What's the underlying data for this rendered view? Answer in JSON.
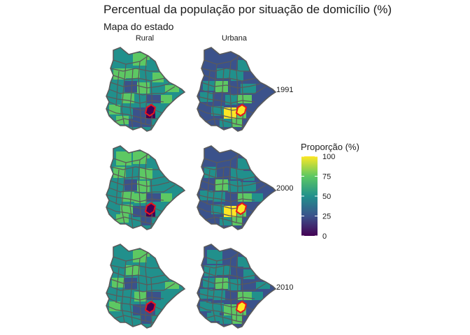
{
  "chart_data": {
    "type": "choropleth-map",
    "title": "Percentual da população por situação de domicílio (%)",
    "subtitle": "Mapa do estado",
    "columns": [
      "Rural",
      "Urbana"
    ],
    "rows": [
      "1991",
      "2000",
      "2010"
    ],
    "legend": {
      "title": "Proporção (%)",
      "ticks": [
        0,
        25,
        50,
        75,
        100
      ],
      "range": [
        0,
        100
      ],
      "colormap": "viridis",
      "colors": [
        "#440154",
        "#3b528b",
        "#21908c",
        "#5dc863",
        "#fde725"
      ]
    },
    "highlight_color": "#e8141e",
    "outline_color": "#5a5a5a"
  }
}
